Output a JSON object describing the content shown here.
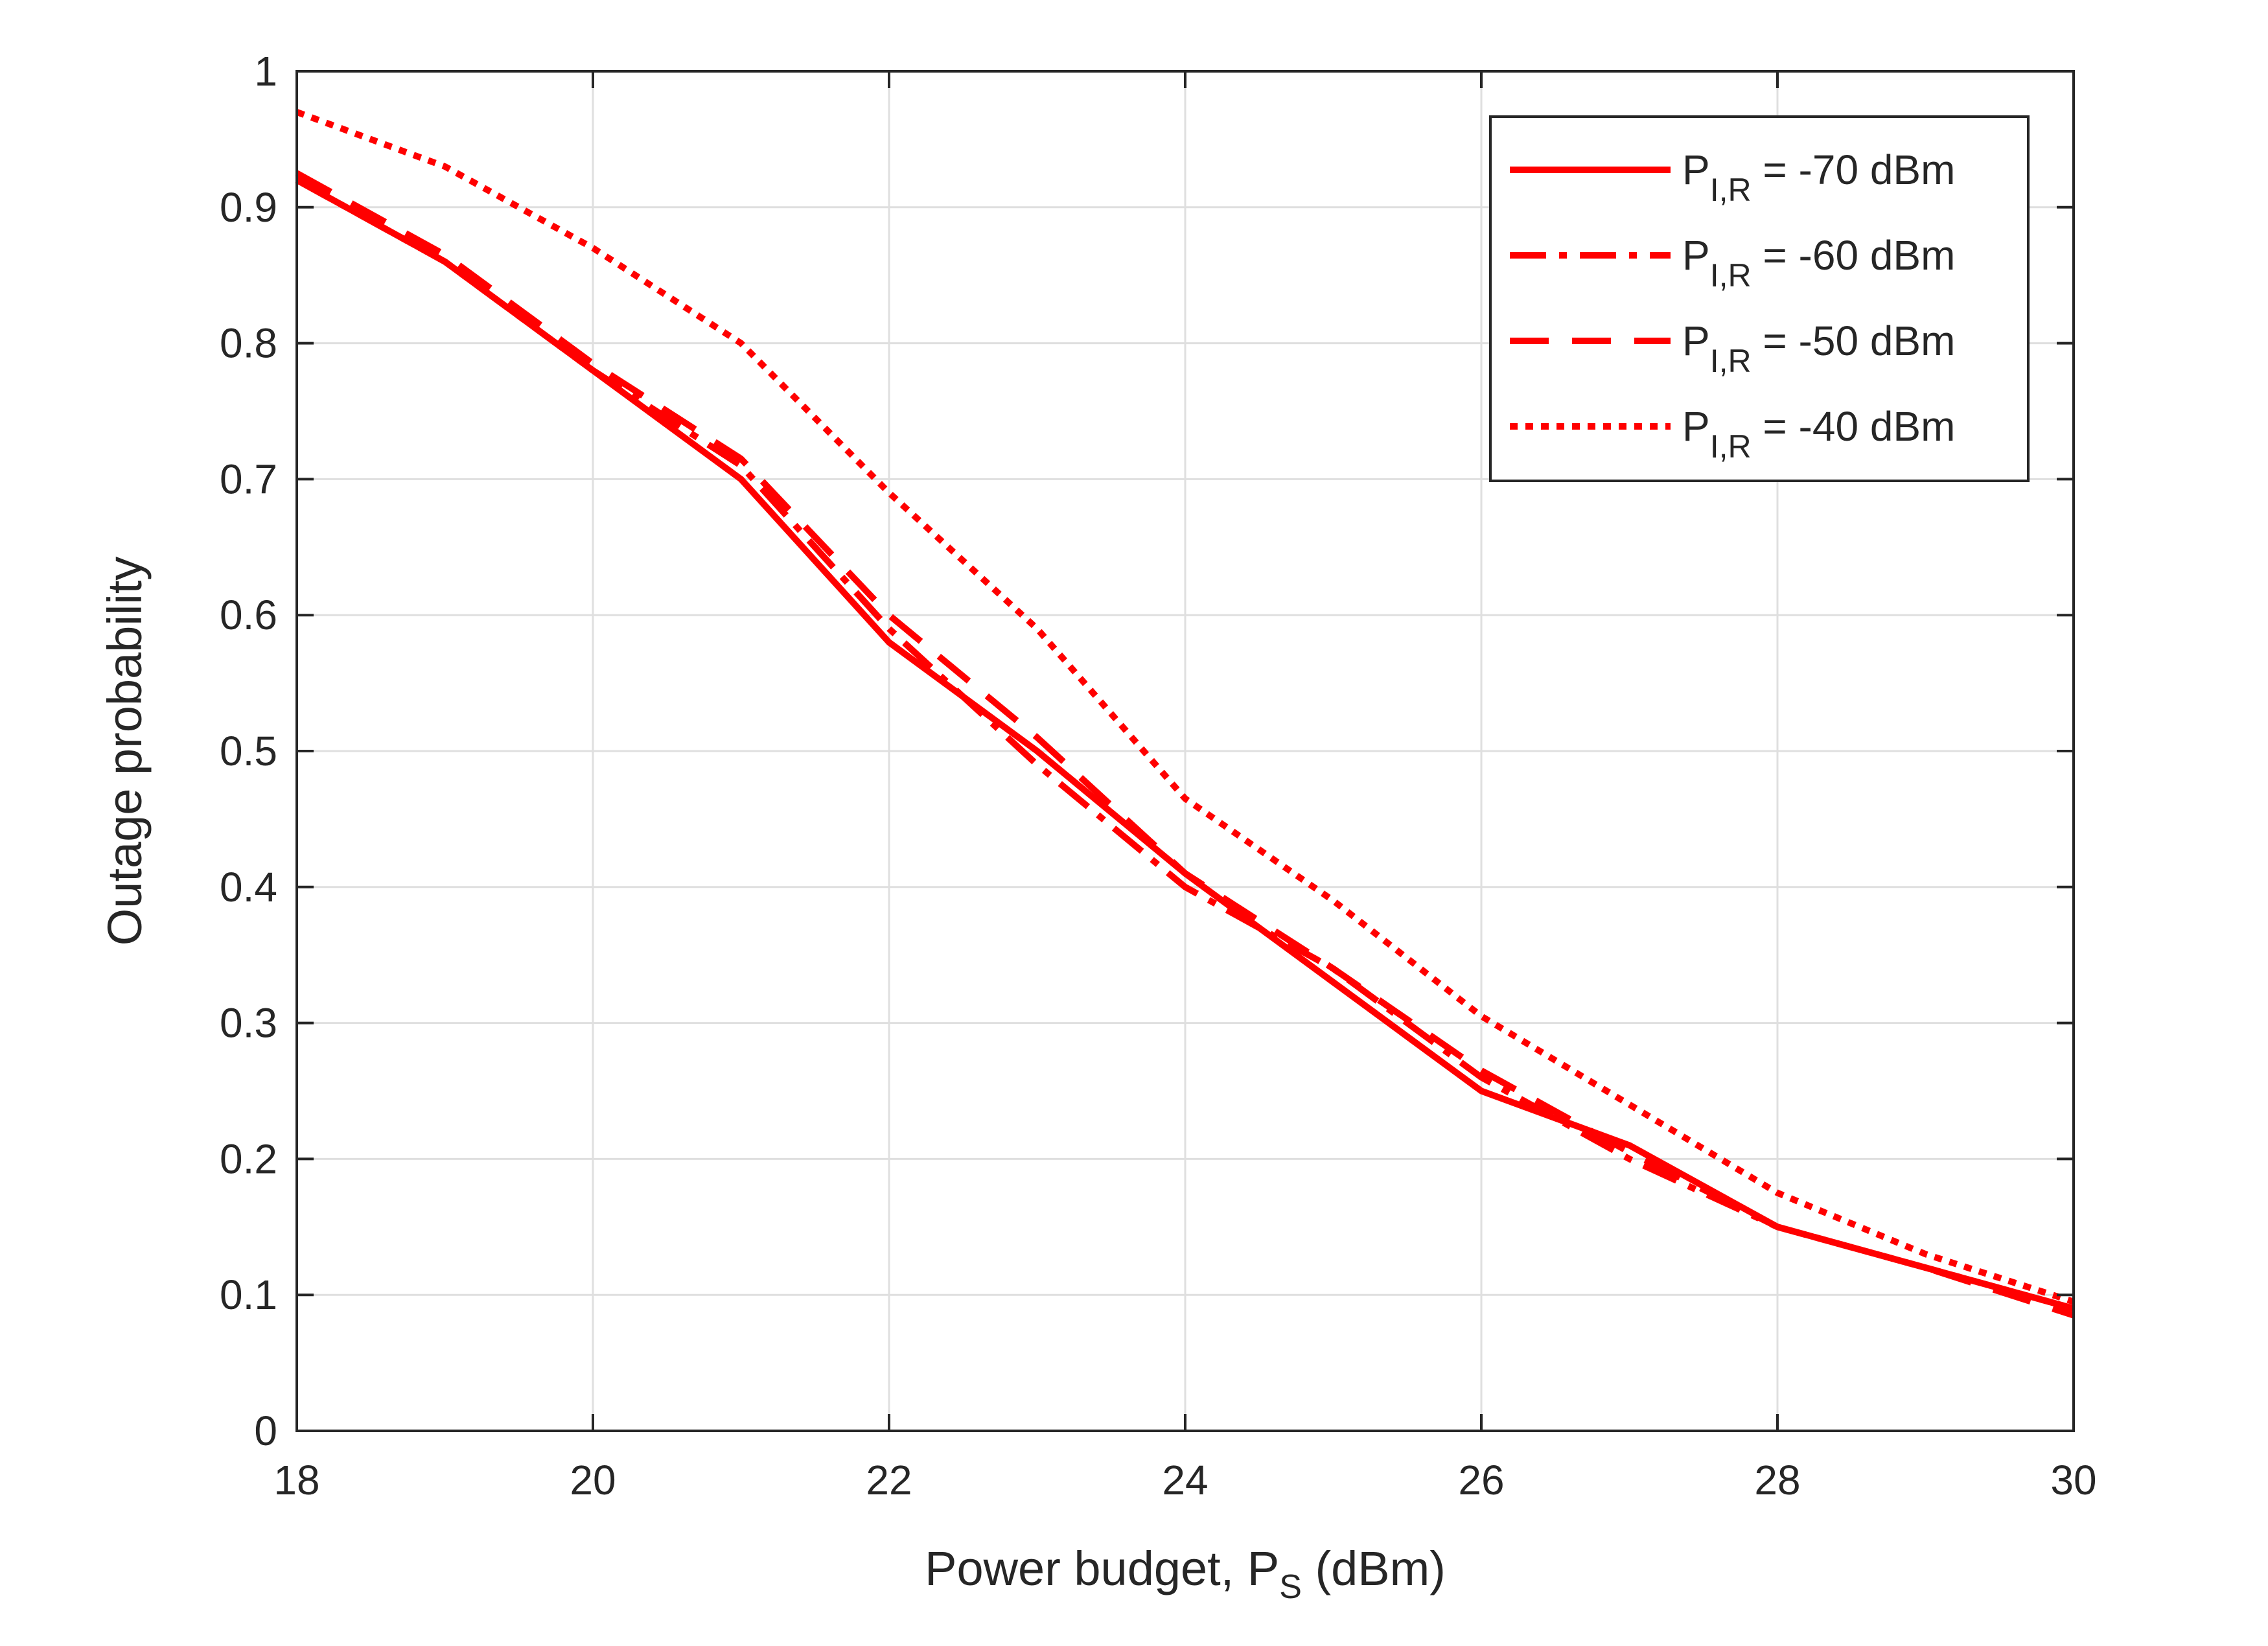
{
  "chart_data": {
    "type": "line",
    "title": "",
    "xlabel": "Power budget, P",
    "xlabel_sub": "S",
    "xlabel_suffix": " (dBm)",
    "ylabel": "Outage probability",
    "xlim": [
      18,
      30
    ],
    "ylim": [
      0,
      1
    ],
    "xticks": [
      18,
      20,
      22,
      24,
      26,
      28,
      30
    ],
    "yticks": [
      0,
      0.1,
      0.2,
      0.3,
      0.4,
      0.5,
      0.6,
      0.7,
      0.8,
      0.9,
      1
    ],
    "ytick_labels": [
      "0",
      "0.1",
      "0.2",
      "0.3",
      "0.4",
      "0.5",
      "0.6",
      "0.7",
      "0.8",
      "0.9",
      "1"
    ],
    "grid": true,
    "legend_position": "top-right",
    "x": [
      18,
      19,
      20,
      21,
      22,
      23,
      24,
      25,
      26,
      27,
      28,
      29,
      30
    ],
    "series": [
      {
        "name_main": "P",
        "name_sub": "I,R",
        "name_suffix": " = -70 dBm",
        "style": "solid",
        "color": "#ff0000",
        "values": [
          0.92,
          0.86,
          0.78,
          0.7,
          0.58,
          0.5,
          0.41,
          0.33,
          0.25,
          0.21,
          0.15,
          0.12,
          0.09
        ]
      },
      {
        "name_main": "P",
        "name_sub": "I,R",
        "name_suffix": " = -60 dBm",
        "style": "dashdot",
        "color": "#ff0000",
        "values": [
          0.92,
          0.86,
          0.78,
          0.71,
          0.59,
          0.49,
          0.4,
          0.34,
          0.26,
          0.2,
          0.15,
          0.12,
          0.09
        ]
      },
      {
        "name_main": "P",
        "name_sub": "I,R",
        "name_suffix": " = -50 dBm",
        "style": "dashed",
        "color": "#ff0000",
        "values": [
          0.925,
          0.865,
          0.785,
          0.715,
          0.6,
          0.51,
          0.41,
          0.34,
          0.265,
          0.205,
          0.15,
          0.12,
          0.085
        ]
      },
      {
        "name_main": "P",
        "name_sub": "I,R",
        "name_suffix": " = -40 dBm",
        "style": "dotted",
        "color": "#ff0000",
        "values": [
          0.97,
          0.93,
          0.87,
          0.8,
          0.69,
          0.59,
          0.465,
          0.39,
          0.305,
          0.24,
          0.175,
          0.13,
          0.095
        ]
      }
    ]
  }
}
